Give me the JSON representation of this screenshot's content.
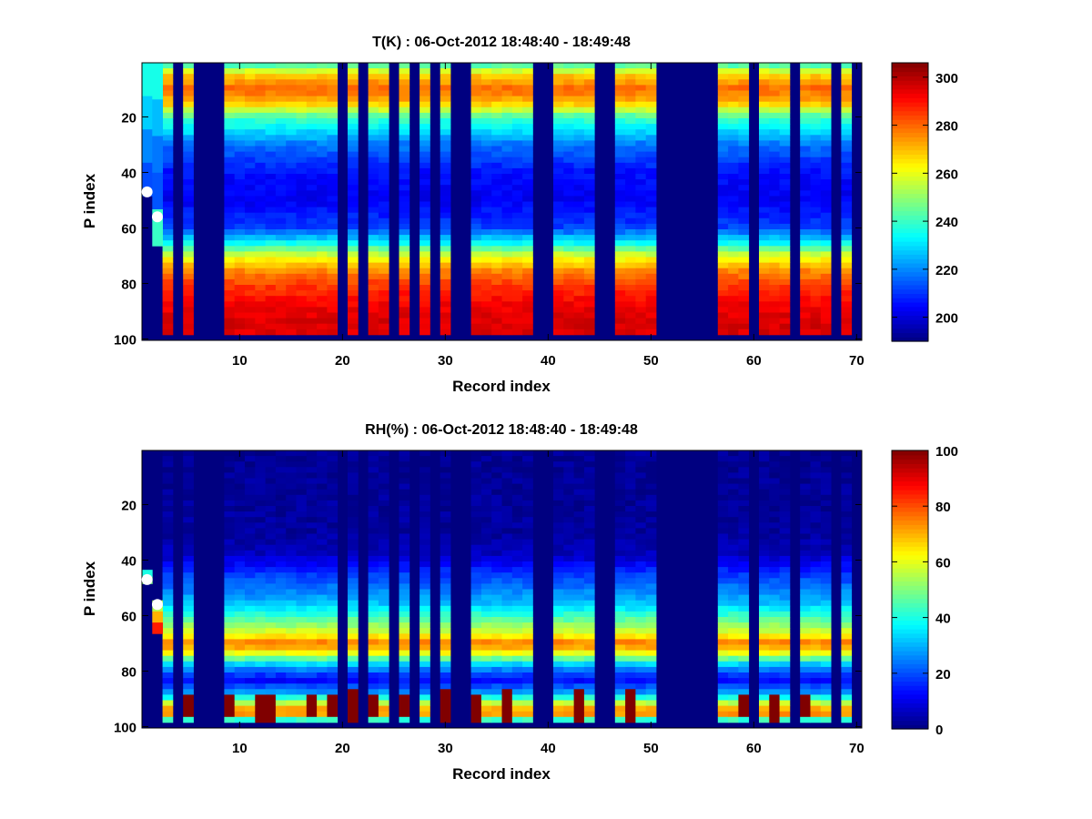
{
  "chart_data": [
    {
      "type": "heatmap",
      "title": "T(K) : 06-Oct-2012 18:48:40 - 18:49:48",
      "xlabel": "Record index",
      "ylabel": "P index",
      "xlim": [
        0.5,
        70.5
      ],
      "ylim": [
        100.5,
        0.5
      ],
      "xticks": [
        10,
        20,
        30,
        40,
        50,
        60,
        70
      ],
      "yticks": [
        20,
        40,
        60,
        80,
        100
      ],
      "colorbar": {
        "min": 190,
        "max": 306,
        "ticks": [
          200,
          220,
          240,
          260,
          280,
          300
        ],
        "colormap": "jet"
      },
      "variable": "temperature",
      "valid_records": [
        3,
        5,
        9,
        10,
        11,
        12,
        13,
        14,
        15,
        16,
        17,
        18,
        19,
        21,
        23,
        24,
        26,
        28,
        30,
        33,
        34,
        35,
        36,
        37,
        38,
        41,
        42,
        43,
        44,
        47,
        48,
        49,
        50,
        57,
        58,
        59,
        61,
        62,
        63,
        65,
        66,
        67,
        69
      ],
      "valid_p_range": [
        1,
        98
      ],
      "profile_anchors": {
        "p": [
          1,
          5,
          10,
          15,
          20,
          30,
          40,
          50,
          60,
          65,
          70,
          75,
          80,
          85,
          90,
          95,
          98
        ],
        "value": [
          240,
          268,
          280,
          270,
          242,
          218,
          206,
          203,
          212,
          232,
          258,
          275,
          284,
          290,
          294,
          296,
          295
        ]
      },
      "partial_profiles": [
        {
          "record": 1,
          "p_range": [
            1,
            48
          ],
          "values": [
            236,
            228,
            220,
            213
          ]
        },
        {
          "record": 2,
          "p_range": [
            1,
            66
          ],
          "values": [
            236,
            226,
            218,
            214,
            240
          ]
        }
      ],
      "markers": [
        {
          "record": 1,
          "p": 47
        },
        {
          "record": 2,
          "p": 56
        }
      ],
      "fill_value": 190
    },
    {
      "type": "heatmap",
      "title": "RH(%) : 06-Oct-2012 18:48:40 - 18:49:48",
      "xlabel": "Record index",
      "ylabel": "P index",
      "xlim": [
        0.5,
        70.5
      ],
      "ylim": [
        100.5,
        0.5
      ],
      "xticks": [
        10,
        20,
        30,
        40,
        50,
        60,
        70
      ],
      "yticks": [
        20,
        40,
        60,
        80,
        100
      ],
      "colorbar": {
        "min": 0,
        "max": 100,
        "ticks": [
          0,
          20,
          40,
          60,
          80,
          100
        ],
        "colormap": "jet"
      },
      "variable": "relative_humidity",
      "valid_records": [
        3,
        5,
        9,
        10,
        11,
        12,
        13,
        14,
        15,
        16,
        17,
        18,
        19,
        21,
        23,
        24,
        26,
        28,
        30,
        33,
        34,
        35,
        36,
        37,
        38,
        41,
        42,
        43,
        44,
        47,
        48,
        49,
        50,
        57,
        58,
        59,
        61,
        62,
        63,
        65,
        66,
        67,
        69
      ],
      "valid_p_range": [
        1,
        98
      ],
      "profile_anchors": {
        "p": [
          1,
          30,
          38,
          45,
          55,
          62,
          67,
          70,
          73,
          78,
          83,
          88,
          92,
          95,
          98
        ],
        "value": [
          2,
          3,
          6,
          18,
          30,
          48,
          62,
          76,
          65,
          30,
          12,
          28,
          60,
          80,
          35
        ]
      },
      "saturated_cells": [
        {
          "record": 5,
          "p_range": [
            89,
            95
          ]
        },
        {
          "record": 9,
          "p_range": [
            89,
            95
          ]
        },
        {
          "record": 12,
          "p_range": [
            89,
            98
          ]
        },
        {
          "record": 13,
          "p_range": [
            89,
            98
          ]
        },
        {
          "record": 17,
          "p_range": [
            89,
            95
          ]
        },
        {
          "record": 19,
          "p_range": [
            89,
            95
          ]
        },
        {
          "record": 21,
          "p_range": [
            87,
            98
          ]
        },
        {
          "record": 23,
          "p_range": [
            89,
            95
          ]
        },
        {
          "record": 26,
          "p_range": [
            89,
            95
          ]
        },
        {
          "record": 30,
          "p_range": [
            87,
            98
          ]
        },
        {
          "record": 33,
          "p_range": [
            89,
            98
          ]
        },
        {
          "record": 36,
          "p_range": [
            87,
            98
          ]
        },
        {
          "record": 43,
          "p_range": [
            87,
            98
          ]
        },
        {
          "record": 48,
          "p_range": [
            87,
            98
          ]
        },
        {
          "record": 59,
          "p_range": [
            89,
            95
          ]
        },
        {
          "record": 62,
          "p_range": [
            89,
            98
          ]
        },
        {
          "record": 65,
          "p_range": [
            89,
            95
          ]
        }
      ],
      "partial_profiles": [
        {
          "record": 1,
          "p_range": [
            44,
            48
          ],
          "values": [
            40,
            50
          ]
        },
        {
          "record": 2,
          "p_range": [
            55,
            66
          ],
          "values": [
            55,
            70,
            85
          ]
        }
      ],
      "markers": [
        {
          "record": 1,
          "p": 47
        },
        {
          "record": 2,
          "p": 56
        }
      ],
      "fill_value": 0
    }
  ]
}
